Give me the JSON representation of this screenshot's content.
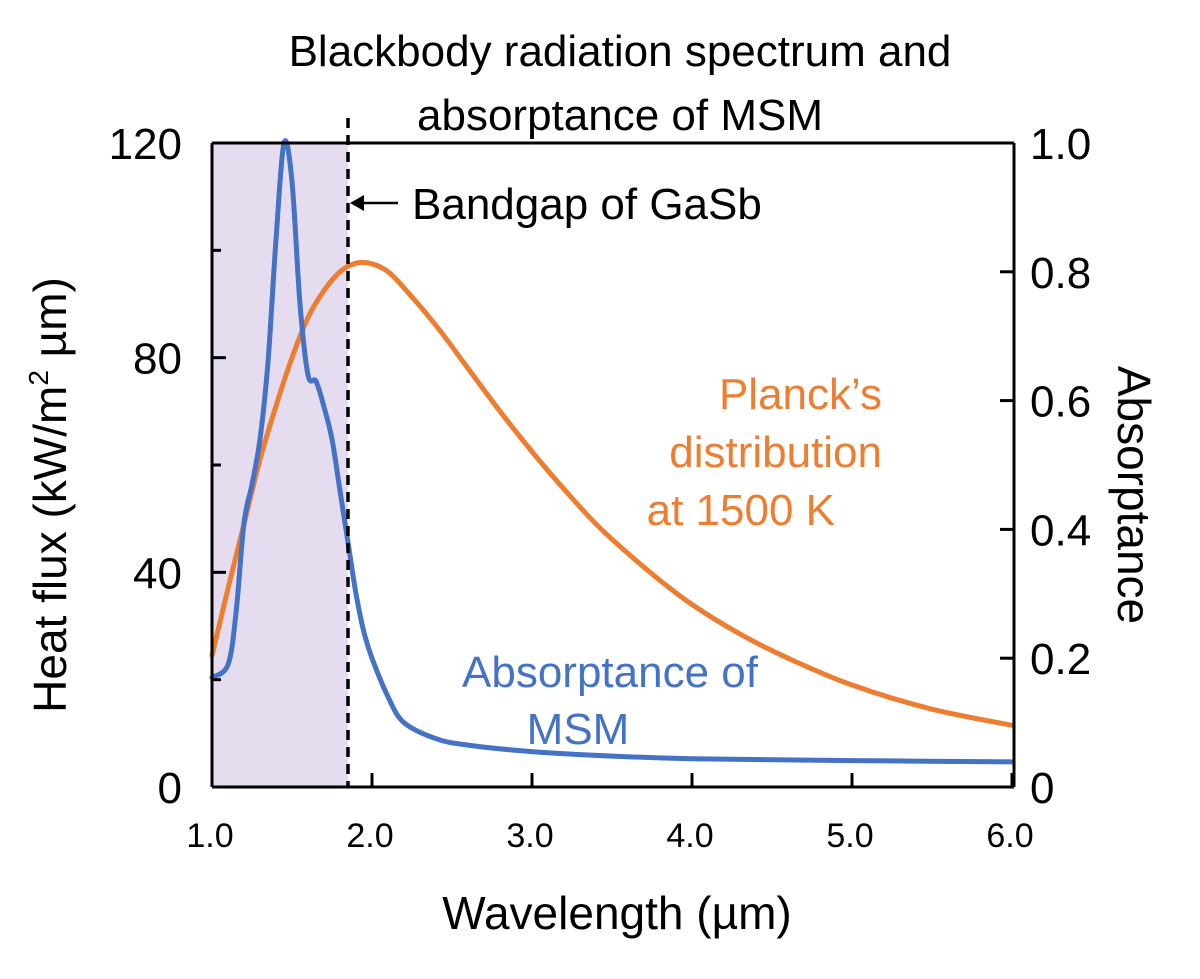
{
  "chart_data": {
    "type": "line",
    "title_lines": [
      "Blackbody radiation spectrum and",
      "absorptance of MSM"
    ],
    "xlabel": "Wavelength (µm)",
    "ylabel_left_main": "Heat flux (kW/m",
    "ylabel_left_sup": "2",
    "ylabel_left_end": " µm)",
    "ylabel_right": "Absorptance",
    "xlim": [
      1.0,
      6.0
    ],
    "x_tick_labels": [
      "1.0",
      "2.0",
      "3.0",
      "4.0",
      "5.0",
      "6.0"
    ],
    "y_left_lim": [
      0,
      120
    ],
    "y_left_tick_labels": [
      "0",
      "40",
      "80",
      "120"
    ],
    "y_right_lim": [
      0,
      1.0
    ],
    "y_right_tick_labels": [
      "0",
      "0.2",
      "0.4",
      "0.6",
      "0.8",
      "1.0"
    ],
    "grid": false,
    "shaded_region": {
      "x_start": 1.0,
      "x_end": 1.85,
      "color": "#e6dcf0"
    },
    "bandgap_line_x": 1.85,
    "annotations": {
      "bandgap": "Bandgap of GaSb",
      "planck_lines": [
        "Planck’s",
        "distribution",
        "at 1500 K"
      ],
      "absorptance_lines": [
        "Absorptance of",
        "MSM"
      ]
    },
    "series": [
      {
        "axis": "left",
        "color": "#ed7d31",
        "x": [
          1.0,
          1.1,
          1.2,
          1.3,
          1.4,
          1.5,
          1.6,
          1.7,
          1.8,
          1.9,
          2.0,
          2.1,
          2.2,
          2.4,
          2.6,
          2.8,
          3.0,
          3.2,
          3.4,
          3.6,
          3.8,
          4.0,
          4.3,
          4.6,
          5.0,
          5.5,
          6.0
        ],
        "values": [
          24.5,
          37,
          49,
          61,
          71,
          80,
          87.5,
          92.5,
          96,
          97.6,
          97.5,
          96,
          93,
          86,
          78,
          70,
          62.5,
          55.5,
          49,
          43.5,
          38.5,
          34,
          28.5,
          24,
          19,
          14.5,
          11.5
        ]
      },
      {
        "axis": "right",
        "color": "#4472c4",
        "x": [
          1.0,
          1.1,
          1.15,
          1.2,
          1.25,
          1.3,
          1.35,
          1.4,
          1.45,
          1.5,
          1.55,
          1.6,
          1.65,
          1.7,
          1.75,
          1.8,
          1.85,
          1.9,
          1.95,
          2.0,
          2.1,
          2.2,
          2.4,
          2.6,
          3.0,
          3.5,
          4.0,
          5.0,
          6.0
        ],
        "values": [
          0.17,
          0.19,
          0.27,
          0.41,
          0.47,
          0.54,
          0.66,
          0.85,
          1.0,
          0.94,
          0.75,
          0.64,
          0.63,
          0.59,
          0.54,
          0.46,
          0.38,
          0.3,
          0.24,
          0.2,
          0.14,
          0.1,
          0.075,
          0.065,
          0.055,
          0.048,
          0.044,
          0.041,
          0.039
        ]
      }
    ]
  }
}
